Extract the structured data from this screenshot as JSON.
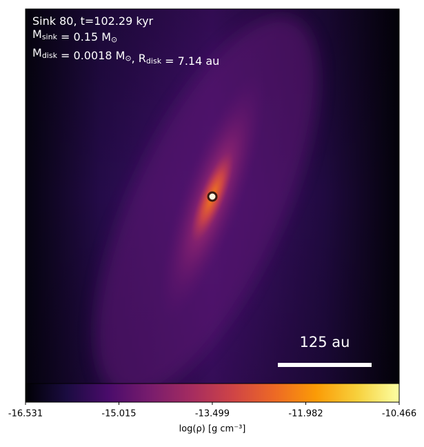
{
  "chart_data": {
    "type": "heatmap",
    "annotation_lines": [
      [
        {
          "text": "Sink 80, t=102.29 kyr"
        }
      ],
      [
        {
          "text": "M",
          "sub": "sink"
        },
        {
          "text": " = 0.15 M",
          "sub": "⊙"
        }
      ],
      [
        {
          "text": "M",
          "sub": "disk"
        },
        {
          "text": " = 0.0018 M",
          "sub": "⊙"
        },
        {
          "text": ", R",
          "sub": "disk"
        },
        {
          "text": " = 7.14 au"
        }
      ]
    ],
    "scale_bar_label": "125 au",
    "colorbar_label": "log(ρ) [g cm⁻³]",
    "colormap": "inferno",
    "clim": [
      -16.531,
      -10.466
    ],
    "cticks": [
      -16.531,
      -15.015,
      -13.499,
      -11.982,
      -10.466
    ]
  }
}
